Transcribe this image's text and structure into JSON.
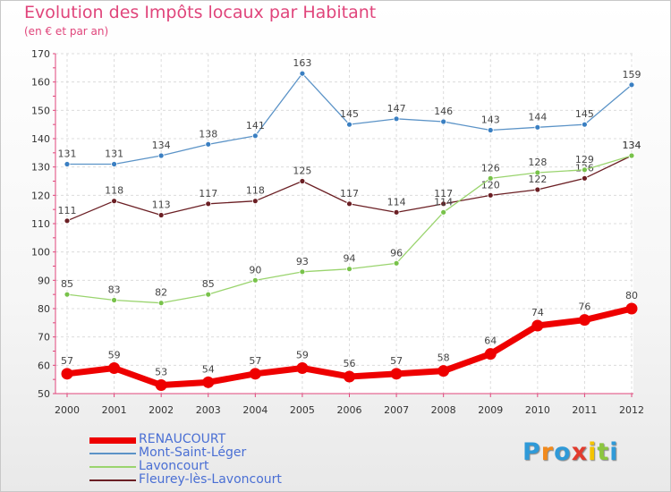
{
  "title": "Evolution des Impôts locaux par Habitant",
  "subtitle": "(en € et par an)",
  "logo": {
    "text": "Proxiti",
    "letters": [
      "P",
      "r",
      "o",
      "x",
      "i",
      "t",
      "i"
    ],
    "colors": [
      "#2f9ad8",
      "#f28a1c",
      "#2f9ad8",
      "#e23b2d",
      "#f5c400",
      "#8cc63f",
      "#2f9ad8"
    ]
  },
  "chart_data": {
    "type": "line",
    "x": [
      "2000",
      "2001",
      "2002",
      "2003",
      "2004",
      "2005",
      "2006",
      "2007",
      "2008",
      "2009",
      "2010",
      "2011",
      "2012"
    ],
    "ylim": [
      50,
      170
    ],
    "yticks": [
      50,
      60,
      70,
      80,
      90,
      100,
      110,
      120,
      130,
      140,
      150,
      160,
      170
    ],
    "grid": true,
    "legend_position": "bottom-left",
    "series": [
      {
        "name": "Mont-Saint-Léger",
        "color": "#5b93c7",
        "point_color": "#3a7fc2",
        "width": 1.3,
        "marker": 3,
        "values": [
          131,
          131,
          134,
          138,
          141,
          163,
          145,
          147,
          146,
          143,
          144,
          145,
          159
        ]
      },
      {
        "name": "Fleurey-lès-Lavoncourt",
        "color": "#6b1f24",
        "point_color": "#6b1f24",
        "width": 1.3,
        "marker": 3,
        "values": [
          111,
          118,
          113,
          117,
          118,
          125,
          117,
          114,
          117,
          120,
          122,
          126,
          134
        ]
      },
      {
        "name": "Lavoncourt",
        "color": "#9ad46e",
        "point_color": "#78c24a",
        "width": 1.3,
        "marker": 3,
        "values": [
          85,
          83,
          82,
          85,
          90,
          93,
          94,
          96,
          114,
          126,
          128,
          129,
          134
        ]
      },
      {
        "name": "RENAUCOURT",
        "color": "#ee0000",
        "point_color": "#ee0000",
        "width": 7,
        "marker": 6.5,
        "values": [
          57,
          59,
          53,
          54,
          57,
          59,
          56,
          57,
          58,
          64,
          74,
          76,
          80
        ]
      }
    ]
  }
}
